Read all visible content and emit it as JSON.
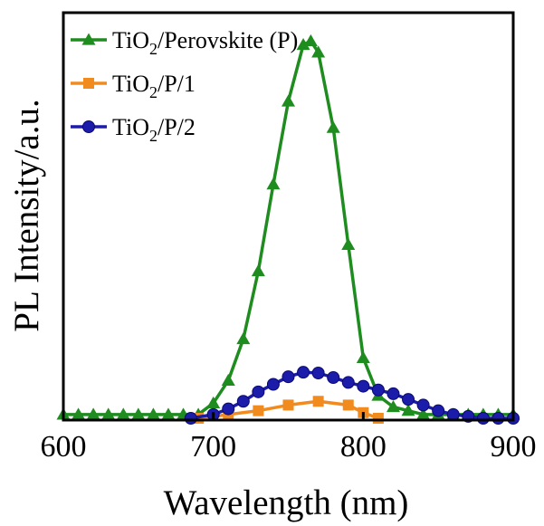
{
  "chart_data": {
    "type": "line",
    "xlabel": "Wavelength (nm)",
    "ylabel": "PL Intensity/a.u.",
    "xlim": [
      600,
      900
    ],
    "ylim": [
      0,
      1.08
    ],
    "x_ticks": [
      "600",
      "700",
      "800",
      "900"
    ],
    "y_tick_labels": false,
    "grid": false,
    "legend_position": "top-left",
    "series": [
      {
        "name": "TiO2/Perovskite (P)",
        "name_parts": {
          "pre": "TiO",
          "sub": "2",
          "post": "/Perovskite (P)"
        },
        "color": "#1e8c1e",
        "marker": "triangle",
        "x": [
          600,
          610,
          620,
          630,
          640,
          650,
          660,
          670,
          680,
          690,
          700,
          710,
          720,
          730,
          740,
          750,
          760,
          765,
          770,
          780,
          790,
          800,
          810,
          820,
          830,
          840,
          850,
          860,
          870,
          880,
          890,
          900
        ],
        "y": [
          0.01,
          0.01,
          0.01,
          0.01,
          0.01,
          0.01,
          0.01,
          0.01,
          0.01,
          0.01,
          0.04,
          0.1,
          0.21,
          0.39,
          0.62,
          0.84,
          0.99,
          1.0,
          0.97,
          0.77,
          0.46,
          0.16,
          0.06,
          0.03,
          0.02,
          0.01,
          0.01,
          0.01,
          0.01,
          0.01,
          0.01,
          0.01
        ]
      },
      {
        "name": "TiO2/P/1",
        "name_parts": {
          "pre": "TiO",
          "sub": "2",
          "post": "/P/1"
        },
        "color": "#f28b1e",
        "marker": "square",
        "x": [
          690,
          710,
          730,
          750,
          770,
          790,
          800,
          810
        ],
        "y": [
          0.0,
          0.01,
          0.02,
          0.035,
          0.045,
          0.035,
          0.015,
          0.0
        ]
      },
      {
        "name": "TiO2/P/2",
        "name_parts": {
          "pre": "TiO",
          "sub": "2",
          "post": "/P/2"
        },
        "color": "#1c1cab",
        "marker": "circle",
        "x": [
          685,
          700,
          710,
          720,
          730,
          740,
          750,
          760,
          770,
          780,
          790,
          800,
          810,
          820,
          830,
          840,
          850,
          860,
          870,
          880,
          890,
          900
        ],
        "y": [
          0.0,
          0.01,
          0.025,
          0.045,
          0.07,
          0.09,
          0.11,
          0.122,
          0.12,
          0.108,
          0.095,
          0.085,
          0.075,
          0.065,
          0.05,
          0.035,
          0.02,
          0.01,
          0.005,
          0.0,
          0.0,
          0.0
        ]
      }
    ]
  }
}
